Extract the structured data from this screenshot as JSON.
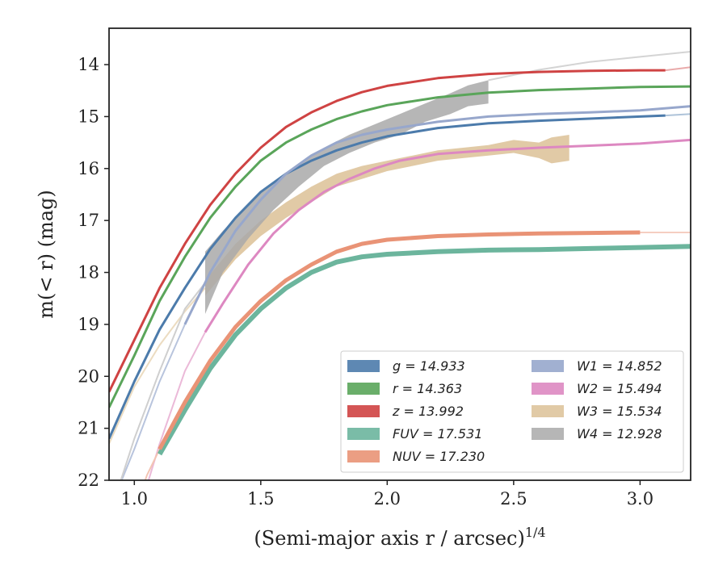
{
  "chart_data": {
    "type": "line",
    "xlabel": "(Semi-major axis r / arcsec)",
    "xlabel_exponent": "1/4",
    "ylabel": "m(< r) (mag)",
    "xlim": [
      0.9,
      3.2
    ],
    "ylim": [
      22,
      13.3
    ],
    "y_inverted": true,
    "x_ticks": [
      "1.0",
      "1.5",
      "2.0",
      "2.5",
      "3.0"
    ],
    "x_tick_values": [
      1.0,
      1.5,
      2.0,
      2.5,
      3.0
    ],
    "y_ticks": [
      "14",
      "15",
      "16",
      "17",
      "18",
      "19",
      "20",
      "21",
      "22"
    ],
    "y_tick_values": [
      14,
      15,
      16,
      17,
      18,
      19,
      20,
      21,
      22
    ],
    "legend_position": "lower-right",
    "series": [
      {
        "name": "g = 14.933",
        "key": "g",
        "color": "#4c7bab",
        "x": [
          0.9,
          1.0,
          1.1,
          1.2,
          1.3,
          1.4,
          1.5,
          1.6,
          1.7,
          1.8,
          1.9,
          2.0,
          2.2,
          2.4,
          2.6,
          2.8,
          3.0,
          3.1
        ],
        "y": [
          21.2,
          20.1,
          19.1,
          18.3,
          17.55,
          16.95,
          16.45,
          16.1,
          15.85,
          15.65,
          15.5,
          15.38,
          15.22,
          15.13,
          15.08,
          15.04,
          15.0,
          14.98
        ],
        "width": 3,
        "extended_to": 3.2,
        "extended_y": 14.95
      },
      {
        "name": "r = 14.363",
        "key": "r",
        "color": "#5aa55a",
        "x": [
          0.9,
          1.0,
          1.1,
          1.2,
          1.3,
          1.4,
          1.5,
          1.6,
          1.7,
          1.8,
          1.9,
          2.0,
          2.2,
          2.4,
          2.6,
          2.8,
          3.0,
          3.2
        ],
        "y": [
          20.6,
          19.6,
          18.55,
          17.7,
          16.95,
          16.35,
          15.85,
          15.5,
          15.25,
          15.05,
          14.9,
          14.78,
          14.63,
          14.54,
          14.49,
          14.46,
          14.43,
          14.42
        ],
        "width": 3
      },
      {
        "name": "z = 13.992",
        "key": "z",
        "color": "#cf4343",
        "x": [
          0.9,
          1.0,
          1.1,
          1.2,
          1.3,
          1.4,
          1.5,
          1.6,
          1.7,
          1.8,
          1.9,
          2.0,
          2.2,
          2.4,
          2.6,
          2.8,
          3.0,
          3.1
        ],
        "y": [
          20.3,
          19.3,
          18.3,
          17.45,
          16.7,
          16.1,
          15.6,
          15.2,
          14.92,
          14.7,
          14.53,
          14.41,
          14.26,
          14.18,
          14.14,
          14.12,
          14.11,
          14.11
        ],
        "width": 3,
        "extended_to": 3.2,
        "extended_y": 14.05
      },
      {
        "name": "FUV = 17.531",
        "key": "FUV",
        "color": "#6cb59d",
        "x": [
          1.1,
          1.2,
          1.3,
          1.4,
          1.5,
          1.6,
          1.7,
          1.8,
          1.9,
          2.0,
          2.2,
          2.4,
          2.6,
          2.8,
          3.0,
          3.2
        ],
        "y": [
          21.5,
          20.65,
          19.85,
          19.2,
          18.7,
          18.3,
          18.0,
          17.8,
          17.7,
          17.65,
          17.6,
          17.57,
          17.56,
          17.54,
          17.52,
          17.5
        ],
        "width": 6
      },
      {
        "name": "NUV = 17.230",
        "key": "NUV",
        "color": "#e99376",
        "x": [
          1.1,
          1.2,
          1.3,
          1.4,
          1.5,
          1.6,
          1.7,
          1.8,
          1.9,
          2.0,
          2.2,
          2.4,
          2.6,
          2.8,
          3.0
        ],
        "y": [
          21.4,
          20.5,
          19.7,
          19.05,
          18.55,
          18.15,
          17.85,
          17.6,
          17.45,
          17.37,
          17.3,
          17.27,
          17.25,
          17.24,
          17.23
        ],
        "width": 5,
        "extended_to": 3.2,
        "extended_y": 17.23
      },
      {
        "name": "W1 = 14.852",
        "key": "W1",
        "color": "#97a7cc",
        "x": [
          1.2,
          1.3,
          1.4,
          1.5,
          1.6,
          1.7,
          1.8,
          1.9,
          2.0,
          2.2,
          2.4,
          2.6,
          2.8,
          3.0,
          3.2
        ],
        "y": [
          19.0,
          18.0,
          17.2,
          16.6,
          16.1,
          15.75,
          15.5,
          15.35,
          15.25,
          15.1,
          15.0,
          14.95,
          14.92,
          14.88,
          14.8
        ],
        "width": 3
      },
      {
        "name": "W2 = 15.494",
        "key": "W2",
        "color": "#dd88c1",
        "x": [
          1.28,
          1.35,
          1.45,
          1.55,
          1.65,
          1.75,
          1.85,
          1.95,
          2.05,
          2.2,
          2.4,
          2.6,
          2.8,
          3.0,
          3.2
        ],
        "y": [
          19.15,
          18.6,
          17.85,
          17.25,
          16.8,
          16.45,
          16.2,
          16.0,
          15.85,
          15.72,
          15.65,
          15.6,
          15.56,
          15.52,
          15.45
        ],
        "width": 3
      },
      {
        "name": "W3 = 15.534",
        "key": "W3",
        "color": "#dcc197",
        "band_x": [
          1.28,
          1.4,
          1.5,
          1.6,
          1.7,
          1.8,
          1.9,
          2.0,
          2.1,
          2.2,
          2.3,
          2.4,
          2.5,
          2.6,
          2.65,
          2.72
        ],
        "band_upper": [
          18.15,
          17.45,
          17.0,
          16.65,
          16.35,
          16.1,
          15.95,
          15.85,
          15.75,
          15.65,
          15.6,
          15.55,
          15.45,
          15.5,
          15.4,
          15.35
        ],
        "band_lower": [
          18.45,
          17.75,
          17.3,
          16.95,
          16.65,
          16.35,
          16.2,
          16.05,
          15.95,
          15.85,
          15.8,
          15.75,
          15.7,
          15.8,
          15.9,
          15.85
        ]
      },
      {
        "name": "W4 = 12.928",
        "key": "W4",
        "color": "#a9a9a9",
        "band_x": [
          1.28,
          1.35,
          1.45,
          1.55,
          1.65,
          1.75,
          1.85,
          1.95,
          2.05,
          2.15,
          2.25,
          2.32,
          2.4
        ],
        "band_upper": [
          17.6,
          17.2,
          16.7,
          16.25,
          15.9,
          15.6,
          15.35,
          15.15,
          14.95,
          14.75,
          14.55,
          14.4,
          14.3
        ],
        "band_lower": [
          18.8,
          18.0,
          17.35,
          16.8,
          16.35,
          15.95,
          15.7,
          15.5,
          15.35,
          15.1,
          14.95,
          14.8,
          14.75
        ],
        "extended_x": [
          2.4,
          2.6,
          2.8,
          3.0,
          3.2
        ],
        "extended_y": [
          14.3,
          14.1,
          13.95,
          13.85,
          13.75
        ]
      }
    ],
    "faint_extensions": [
      {
        "key": "W1",
        "color": "#b8c4dd",
        "x": [
          0.9,
          1.0,
          1.1,
          1.2
        ],
        "y": [
          22.6,
          21.4,
          20.1,
          19.0
        ]
      },
      {
        "key": "W2",
        "color": "#ebb9d8",
        "x": [
          1.0,
          1.1,
          1.2,
          1.28
        ],
        "y": [
          22.9,
          21.3,
          19.9,
          19.15
        ]
      },
      {
        "key": "W3",
        "color": "#ecdcc1",
        "x": [
          0.9,
          1.0,
          1.1,
          1.2,
          1.28
        ],
        "y": [
          21.3,
          20.2,
          19.4,
          18.75,
          18.3
        ]
      },
      {
        "key": "W4",
        "color": "#cfcfcf",
        "x": [
          0.9,
          1.0,
          1.1,
          1.2,
          1.28
        ],
        "y": [
          22.7,
          21.2,
          19.9,
          18.7,
          18.2
        ]
      },
      {
        "key": "NUV",
        "color": "#f3c4b3",
        "x": [
          1.0,
          1.05,
          1.1
        ],
        "y": [
          22.6,
          21.9,
          21.4
        ]
      }
    ]
  }
}
